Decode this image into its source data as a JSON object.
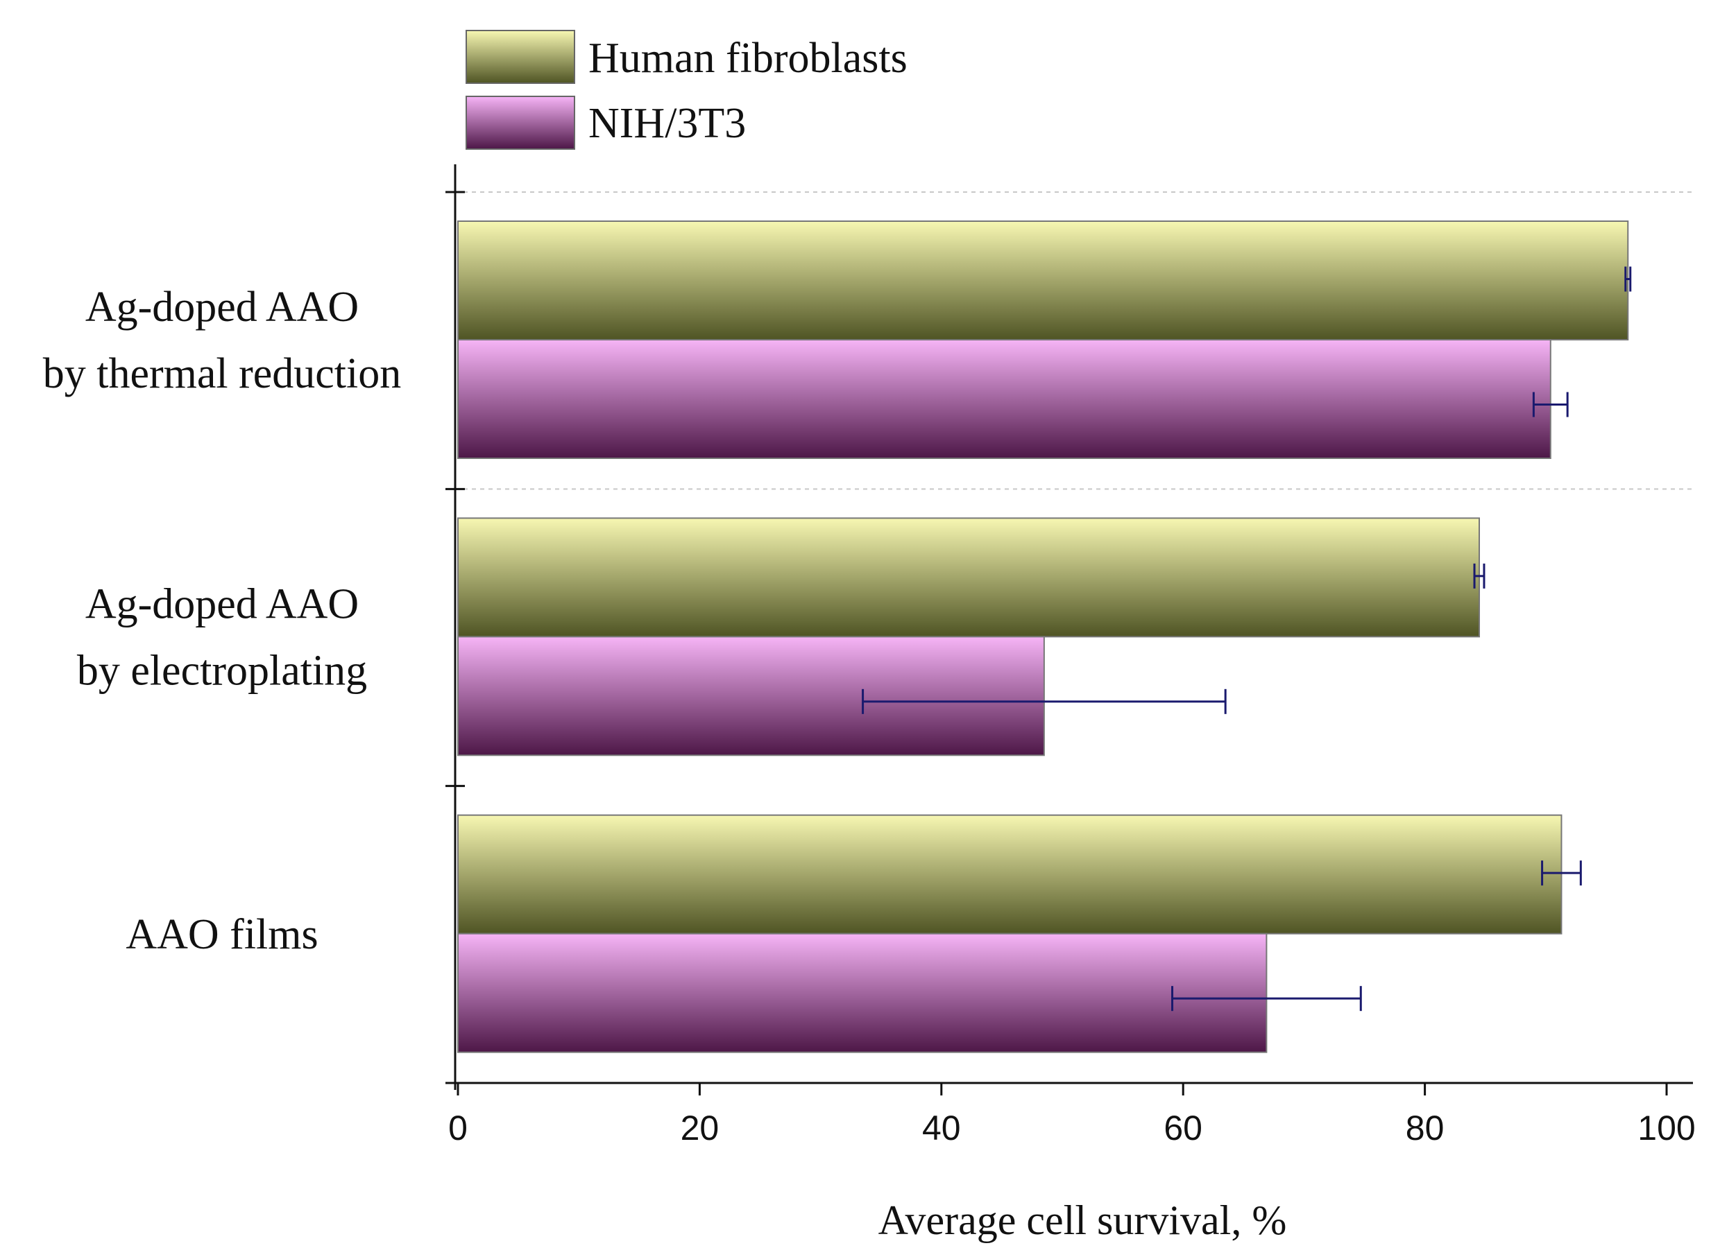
{
  "chart_data": {
    "type": "bar",
    "orientation": "horizontal",
    "title": "",
    "xlabel": "Average cell survival, %",
    "ylabel": "",
    "xlim": [
      0,
      100
    ],
    "xticks": [
      0,
      20,
      40,
      60,
      80,
      100
    ],
    "categories": [
      [
        "Ag-doped AAO",
        "by thermal reduction"
      ],
      [
        "Ag-doped AAO",
        "by electroplating"
      ],
      [
        "AAO films"
      ]
    ],
    "series": [
      {
        "name": "Human fibroblasts",
        "values": [
          96.8,
          84.5,
          91.3
        ],
        "errors": [
          0.2,
          0.4,
          1.6
        ],
        "color_light": "#f7f7b2",
        "color_dark": "#4f5424"
      },
      {
        "name": "NIH/3T3",
        "values": [
          90.4,
          48.5,
          66.9
        ],
        "errors": [
          1.4,
          15.0,
          7.8
        ],
        "color_light": "#f6b4f6",
        "color_dark": "#4d1747"
      }
    ],
    "legend_position": "top-left",
    "grid": "horizontal dotted separators",
    "error_bar_color": "#1a1a6e"
  }
}
